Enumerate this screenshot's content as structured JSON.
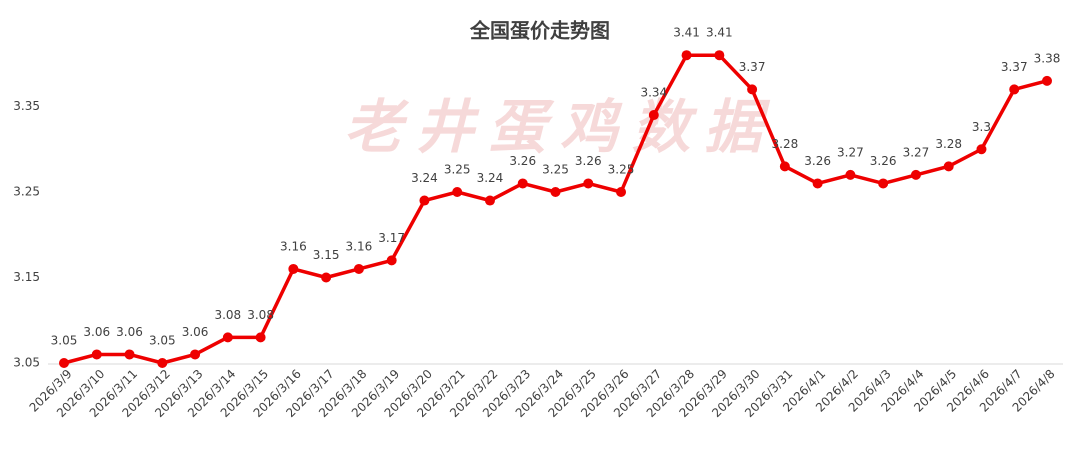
{
  "chart_data": {
    "type": "line",
    "title": "全国蛋价走势图",
    "watermark": "老井蛋鸡数据",
    "categories": [
      "2026/3/9",
      "2026/3/10",
      "2026/3/11",
      "2026/3/12",
      "2026/3/13",
      "2026/3/14",
      "2026/3/15",
      "2026/3/16",
      "2026/3/17",
      "2026/3/18",
      "2026/3/19",
      "2026/3/20",
      "2026/3/21",
      "2026/3/22",
      "2026/3/23",
      "2026/3/24",
      "2026/3/25",
      "2026/3/26",
      "2026/3/27",
      "2026/3/28",
      "2026/3/29",
      "2026/3/30",
      "2026/3/31",
      "2026/4/1",
      "2026/4/2",
      "2026/4/3",
      "2026/4/4",
      "2026/4/5",
      "2026/4/6",
      "2026/4/7",
      "2026/4/8"
    ],
    "series": [
      {
        "name": "全国蛋价",
        "color": "#ee0000",
        "values": [
          3.05,
          3.06,
          3.06,
          3.05,
          3.06,
          3.08,
          3.08,
          3.16,
          3.15,
          3.16,
          3.17,
          3.24,
          3.25,
          3.24,
          3.26,
          3.25,
          3.26,
          3.25,
          3.34,
          3.41,
          3.41,
          3.37,
          3.28,
          3.26,
          3.27,
          3.26,
          3.27,
          3.28,
          3.3,
          3.37,
          3.38
        ]
      }
    ],
    "ylim": [
      3.05,
      3.45
    ],
    "yticks": [
      3.05,
      3.15,
      3.25,
      3.35
    ],
    "grid": false
  }
}
